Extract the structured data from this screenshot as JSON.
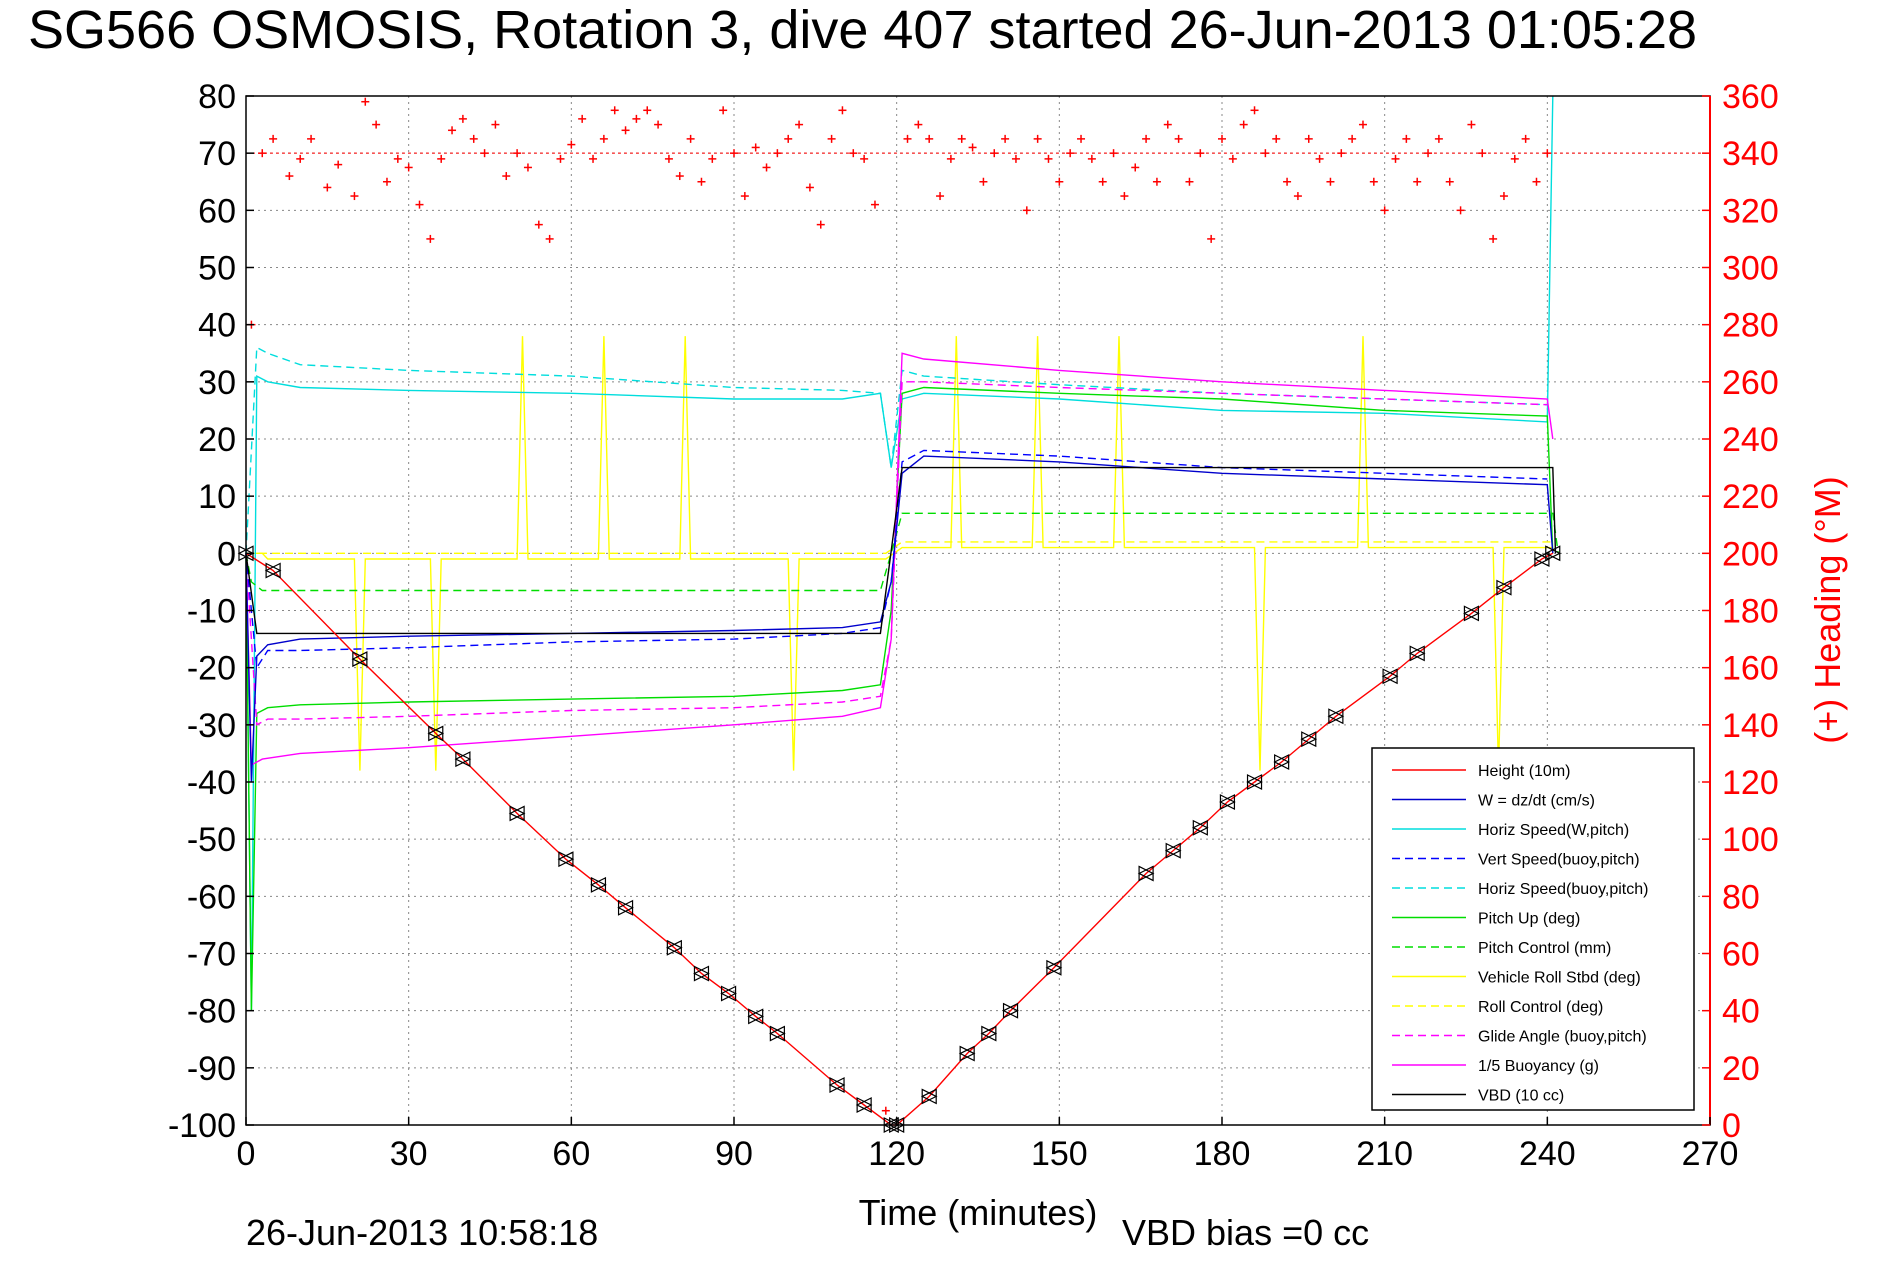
{
  "chart_data": {
    "type": "line",
    "title": "SG566 OSMOSIS, Rotation 3, dive 407 started 26-Jun-2013 01:05:28",
    "xlabel": "Time (minutes)",
    "ylabel_right": "(+) Heading (°M)",
    "xlim": [
      0,
      270
    ],
    "ylim": [
      -100,
      80
    ],
    "ylim_right": [
      0,
      360
    ],
    "xticks": [
      "0",
      "30",
      "60",
      "90",
      "120",
      "150",
      "180",
      "210",
      "240",
      "270"
    ],
    "yticks": [
      "80",
      "70",
      "60",
      "50",
      "40",
      "30",
      "20",
      "10",
      "0",
      "-10",
      "-20",
      "-30",
      "-40",
      "-50",
      "-60",
      "-70",
      "-80",
      "-90",
      "-100"
    ],
    "yticks_right": [
      "360",
      "340",
      "320",
      "300",
      "280",
      "260",
      "240",
      "220",
      "200",
      "180",
      "160",
      "140",
      "120",
      "100",
      "80",
      "60",
      "40",
      "20",
      "0"
    ],
    "grid": true,
    "legend_position": "bottom-right",
    "footer_left": "26-Jun-2013 10:58:18",
    "footer_center": "VBD bias =0 cc",
    "series": [
      {
        "name": "Height (10m)",
        "color": "#ff0000",
        "style": "solid",
        "x": [
          0,
          5,
          21,
          35,
          40,
          50,
          59,
          65,
          70,
          79,
          84,
          89,
          94,
          98,
          109,
          114,
          119,
          120,
          126,
          133,
          137,
          141,
          149,
          166,
          171,
          176,
          181,
          186,
          191,
          196,
          201,
          211,
          216,
          226,
          232,
          239,
          241
        ],
        "y": [
          0,
          -3,
          -18.5,
          -31.5,
          -36,
          -45.5,
          -53.5,
          -58,
          -62,
          -69,
          -73.5,
          -77,
          -81,
          -84,
          -93,
          -96.5,
          -100,
          -100,
          -95,
          -87.5,
          -84,
          -80,
          -72.5,
          -56,
          -52,
          -48,
          -43.5,
          -40,
          -36.5,
          -32.5,
          -28.5,
          -21.5,
          -17.5,
          -10.5,
          -6,
          -1,
          0
        ]
      },
      {
        "name": "W = dz/dt (cm/s)",
        "color": "#0000cc",
        "style": "solid",
        "x": [
          0,
          1,
          2,
          4,
          10,
          30,
          60,
          90,
          110,
          117,
          119,
          121,
          125,
          150,
          180,
          210,
          240,
          241
        ],
        "y": [
          0,
          -40,
          -18,
          -16,
          -15,
          -14.5,
          -14,
          -13.5,
          -13,
          -12,
          -5,
          14,
          17,
          16,
          14,
          13,
          12,
          0
        ]
      },
      {
        "name": "Horiz Speed(W,pitch)",
        "color": "#00dddd",
        "style": "solid",
        "x": [
          0,
          1,
          2,
          4,
          10,
          30,
          60,
          90,
          110,
          117,
          119,
          121,
          125,
          150,
          180,
          210,
          240,
          241
        ],
        "y": [
          0,
          -80,
          31,
          30,
          29,
          28.5,
          28,
          27,
          27,
          28,
          15,
          27,
          28,
          27,
          25,
          24.5,
          23,
          80
        ]
      },
      {
        "name": "Vert Speed(buoy,pitch)",
        "color": "#0000ff",
        "style": "dashed",
        "x": [
          0,
          2,
          4,
          10,
          30,
          60,
          90,
          110,
          117,
          119,
          121,
          125,
          150,
          180,
          210,
          240
        ],
        "y": [
          0,
          -20,
          -17,
          -17,
          -16.5,
          -15.5,
          -15,
          -14,
          -13,
          -5,
          16,
          18,
          17,
          15,
          14,
          13
        ]
      },
      {
        "name": "Horiz Speed(buoy,pitch)",
        "color": "#00dddd",
        "style": "dashed",
        "x": [
          0,
          2,
          4,
          10,
          30,
          60,
          90,
          110,
          117,
          119,
          121,
          125,
          150,
          180,
          210,
          240
        ],
        "y": [
          0,
          36,
          35,
          33,
          32,
          31,
          29,
          28.5,
          28,
          15,
          32,
          31,
          29.5,
          28,
          27,
          26
        ]
      },
      {
        "name": "Pitch Up (deg)",
        "color": "#00dd00",
        "style": "solid",
        "x": [
          0,
          1,
          2,
          4,
          10,
          30,
          60,
          90,
          110,
          117,
          119,
          121,
          125,
          150,
          180,
          210,
          240,
          241
        ],
        "y": [
          0,
          -80,
          -28,
          -27,
          -26.5,
          -26,
          -25.5,
          -25,
          -24,
          -23,
          -10,
          28,
          29,
          28,
          27,
          25,
          24,
          0
        ]
      },
      {
        "name": "Pitch Control (mm)",
        "color": "#00dd00",
        "style": "dashed",
        "x": [
          0,
          1,
          3,
          117,
          119,
          121,
          241,
          242
        ],
        "y": [
          0,
          -5,
          -6.5,
          -6.5,
          0,
          7,
          7,
          0
        ]
      },
      {
        "name": "Vehicle Roll Stbd (deg)",
        "color": "#ffff00",
        "style": "solid",
        "x": [
          0,
          3,
          4,
          20,
          21,
          22,
          34,
          35,
          36,
          50,
          51,
          52,
          65,
          66,
          67,
          80,
          81,
          82,
          100,
          101,
          102,
          118,
          121,
          130,
          131,
          132,
          145,
          146,
          147,
          160,
          161,
          162,
          186,
          187,
          188,
          205,
          206,
          207,
          230,
          231,
          232,
          241
        ],
        "y": [
          0,
          0,
          -1,
          -1,
          -38,
          -1,
          -1,
          -38,
          -1,
          -1,
          38,
          -1,
          -1,
          38,
          -1,
          -1,
          38,
          -1,
          -1,
          -38,
          -1,
          -1,
          1,
          1,
          38,
          1,
          1,
          38,
          1,
          1,
          38,
          1,
          1,
          -38,
          1,
          1,
          38,
          1,
          1,
          -38,
          1,
          1
        ]
      },
      {
        "name": "Roll Control (deg)",
        "color": "#ffff00",
        "style": "dashed",
        "x": [
          0,
          3,
          118,
          121,
          241
        ],
        "y": [
          0,
          0,
          0,
          2,
          2
        ]
      },
      {
        "name": "Glide Angle (buoy,pitch)",
        "color": "#ff00ff",
        "style": "dashed",
        "x": [
          0,
          2,
          4,
          10,
          30,
          60,
          90,
          110,
          117,
          119,
          121,
          125,
          150,
          180,
          210,
          240
        ],
        "y": [
          0,
          -30,
          -29,
          -29,
          -28.5,
          -27.5,
          -27,
          -26,
          -25,
          -15,
          30,
          30,
          29,
          28,
          27,
          26
        ]
      },
      {
        "name": "1/5 Buoyancy (g)",
        "color": "#ff00ff",
        "style": "solid",
        "x": [
          0,
          1,
          3,
          10,
          30,
          60,
          90,
          110,
          117,
          119,
          121,
          125,
          150,
          180,
          210,
          240,
          241
        ],
        "y": [
          0,
          -37,
          -36,
          -35,
          -34,
          -32,
          -30,
          -28.5,
          -27,
          -15,
          35,
          34,
          32,
          30,
          28.5,
          27,
          20
        ]
      },
      {
        "name": "VBD (10 cc)",
        "color": "#000000",
        "style": "solid",
        "x": [
          0,
          2,
          117,
          121,
          241,
          241.5
        ],
        "y": [
          0,
          -14,
          -14,
          15,
          15,
          0
        ]
      }
    ],
    "heading_series": {
      "name": "(+) Heading",
      "color": "#ff0000",
      "marker": "+",
      "reference_line": 340,
      "x": [
        1,
        3,
        5,
        8,
        10,
        12,
        15,
        17,
        20,
        22,
        24,
        26,
        28,
        30,
        32,
        34,
        36,
        38,
        40,
        42,
        44,
        46,
        48,
        50,
        52,
        54,
        56,
        58,
        60,
        62,
        64,
        66,
        68,
        70,
        72,
        74,
        76,
        78,
        80,
        82,
        84,
        86,
        88,
        90,
        92,
        94,
        96,
        98,
        100,
        102,
        104,
        106,
        108,
        110,
        112,
        114,
        116,
        118,
        122,
        124,
        126,
        128,
        130,
        132,
        134,
        136,
        138,
        140,
        142,
        144,
        146,
        148,
        150,
        152,
        154,
        156,
        158,
        160,
        162,
        164,
        166,
        168,
        170,
        172,
        174,
        176,
        178,
        180,
        182,
        184,
        186,
        188,
        190,
        192,
        194,
        196,
        198,
        200,
        202,
        204,
        206,
        208,
        210,
        212,
        214,
        216,
        218,
        220,
        222,
        224,
        226,
        228,
        230,
        232,
        234,
        236,
        238,
        240
      ],
      "y": [
        280,
        340,
        345,
        332,
        338,
        345,
        328,
        336,
        325,
        358,
        350,
        330,
        338,
        335,
        322,
        310,
        338,
        348,
        352,
        345,
        340,
        350,
        332,
        340,
        335,
        315,
        310,
        338,
        343,
        352,
        338,
        345,
        355,
        348,
        352,
        355,
        350,
        338,
        332,
        345,
        330,
        338,
        355,
        340,
        325,
        342,
        335,
        340,
        345,
        350,
        328,
        315,
        345,
        355,
        340,
        338,
        322,
        5,
        345,
        350,
        345,
        325,
        338,
        345,
        342,
        330,
        340,
        345,
        338,
        320,
        345,
        338,
        330,
        340,
        345,
        338,
        330,
        340,
        325,
        335,
        345,
        330,
        350,
        345,
        330,
        340,
        310,
        345,
        338,
        350,
        355,
        340,
        345,
        330,
        325,
        345,
        338,
        330,
        340,
        345,
        350,
        330,
        320,
        338,
        345,
        330,
        340,
        345,
        330,
        320,
        350,
        340,
        310,
        325,
        338,
        345,
        330,
        340
      ]
    }
  }
}
